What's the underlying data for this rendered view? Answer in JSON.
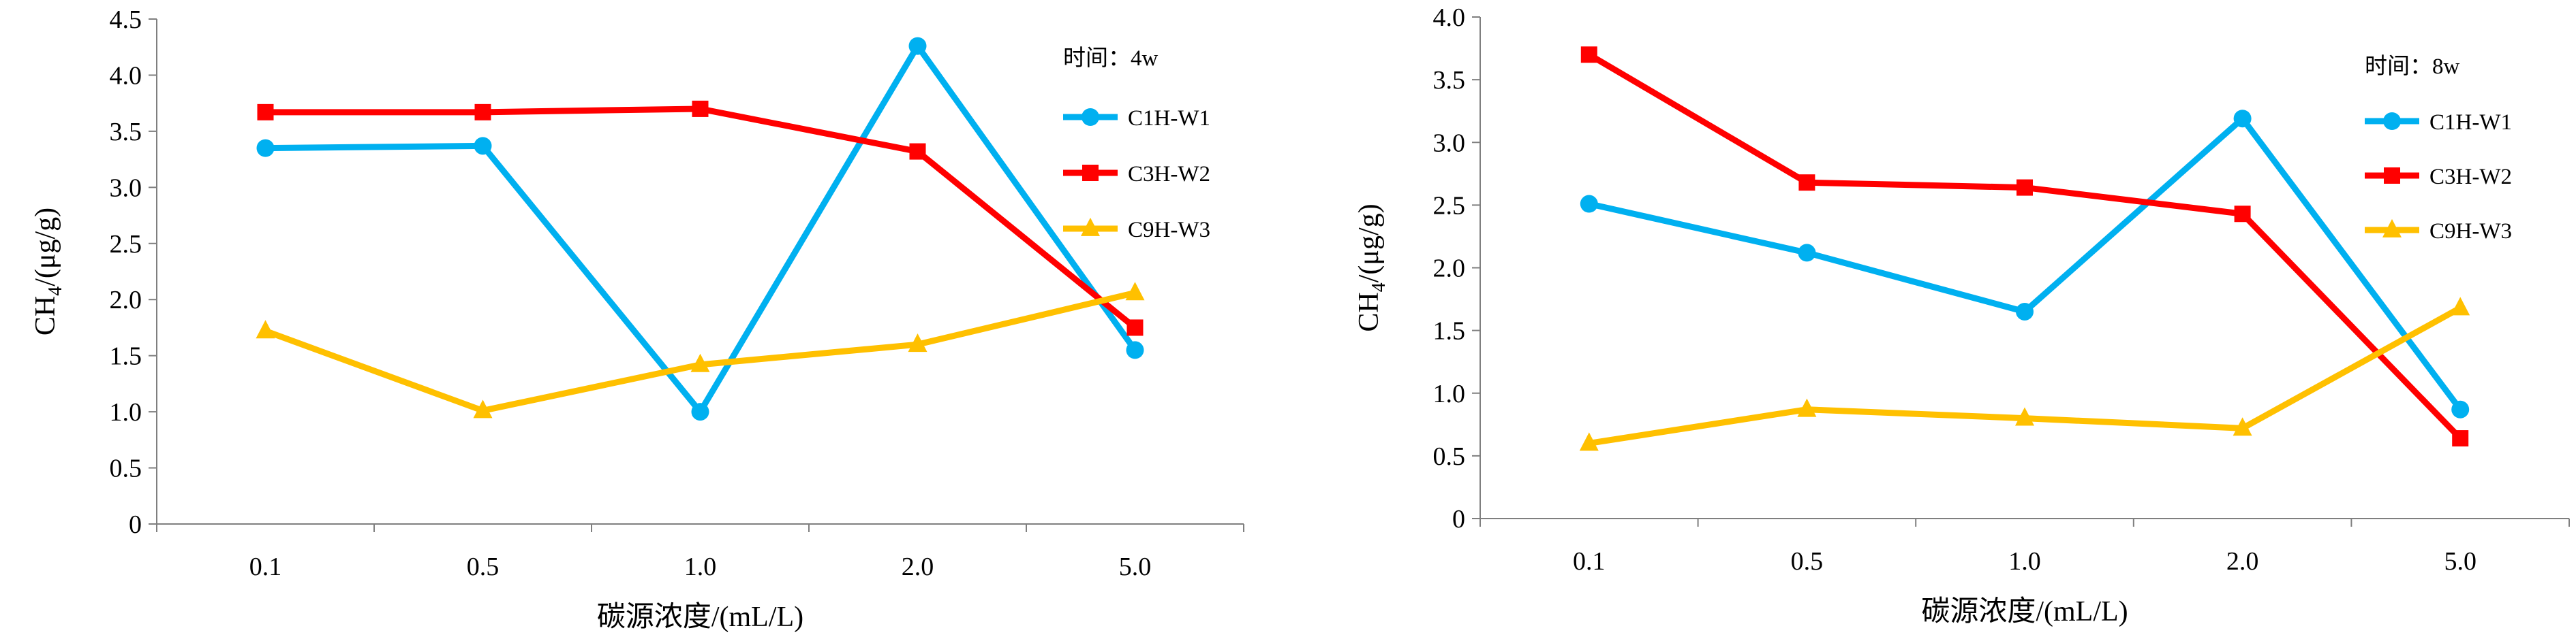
{
  "chart_data": [
    {
      "type": "line",
      "title": "",
      "annotation": "时间：4w",
      "xlabel": "碳源浓度/(mL/L)",
      "ylabel_main": "CH",
      "ylabel_sub": "4",
      "ylabel_tail": "/(μg/g)",
      "categories": [
        "0.1",
        "0.5",
        "1.0",
        "2.0",
        "5.0"
      ],
      "ylim": [
        0,
        4.5
      ],
      "yticks": [
        "0",
        "0.5",
        "1.0",
        "1.5",
        "2.0",
        "2.5",
        "3.0",
        "3.5",
        "4.0",
        "4.5"
      ],
      "grid": false,
      "legend_position": "top-right",
      "series": [
        {
          "name": "C1H-W1",
          "color": "#00B0F0",
          "marker": "circle",
          "values": [
            3.35,
            3.37,
            1.0,
            4.26,
            1.55
          ]
        },
        {
          "name": "C3H-W2",
          "color": "#FF0000",
          "marker": "square",
          "values": [
            3.67,
            3.67,
            3.7,
            3.32,
            1.75
          ]
        },
        {
          "name": "C9H-W3",
          "color": "#FFC000",
          "marker": "triangle",
          "values": [
            1.72,
            1.01,
            1.42,
            1.6,
            2.06
          ]
        }
      ]
    },
    {
      "type": "line",
      "title": "",
      "annotation": "时间：8w",
      "xlabel": "碳源浓度/(mL/L)",
      "ylabel_main": "CH",
      "ylabel_sub": "4",
      "ylabel_tail": "/(μg/g)",
      "categories": [
        "0.1",
        "0.5",
        "1.0",
        "2.0",
        "5.0"
      ],
      "ylim": [
        0,
        4.0
      ],
      "yticks": [
        "0",
        "0.5",
        "1.0",
        "1.5",
        "2.0",
        "2.5",
        "3.0",
        "3.5",
        "4.0"
      ],
      "grid": false,
      "legend_position": "top-right",
      "series": [
        {
          "name": "C1H-W1",
          "color": "#00B0F0",
          "marker": "circle",
          "values": [
            2.51,
            2.12,
            1.65,
            3.19,
            0.87
          ]
        },
        {
          "name": "C3H-W2",
          "color": "#FF0000",
          "marker": "square",
          "values": [
            3.7,
            2.68,
            2.64,
            2.43,
            0.64
          ]
        },
        {
          "name": "C9H-W3",
          "color": "#FFC000",
          "marker": "triangle",
          "values": [
            0.6,
            0.87,
            0.8,
            0.72,
            1.68
          ]
        }
      ]
    }
  ]
}
